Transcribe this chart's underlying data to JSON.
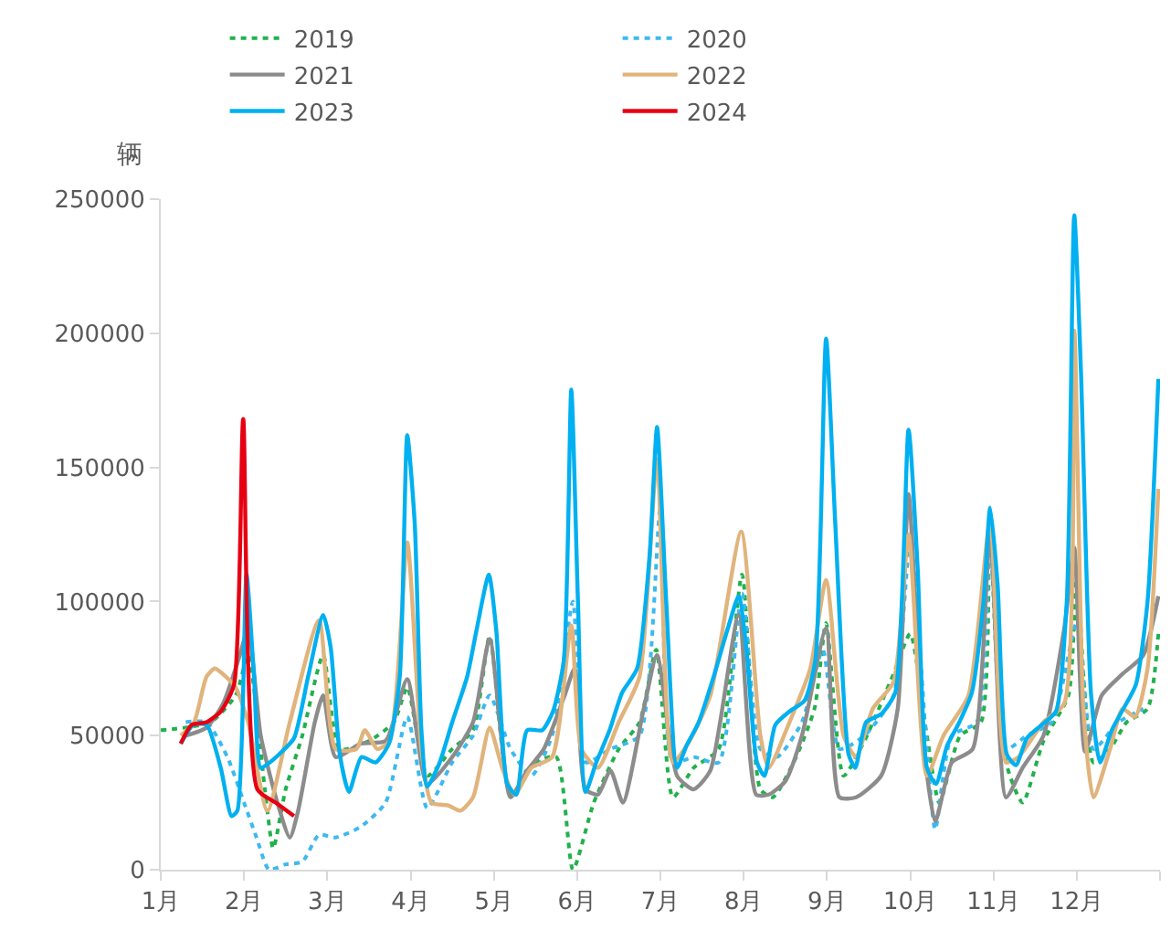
{
  "chart_data": {
    "type": "line",
    "ylabel": "辆",
    "xlim": [
      1,
      13
    ],
    "xticks": [
      {
        "value": 1,
        "label": "1月"
      },
      {
        "value": 2,
        "label": "2月"
      },
      {
        "value": 3,
        "label": "3月"
      },
      {
        "value": 4,
        "label": "4月"
      },
      {
        "value": 5,
        "label": "5月"
      },
      {
        "value": 6,
        "label": "6月"
      },
      {
        "value": 7,
        "label": "7月"
      },
      {
        "value": 8,
        "label": "8月"
      },
      {
        "value": 9,
        "label": "9月"
      },
      {
        "value": 10,
        "label": "10月"
      },
      {
        "value": 11,
        "label": "11月"
      },
      {
        "value": 12,
        "label": "12月"
      },
      {
        "value": 13,
        "label": null
      }
    ],
    "ylim": [
      0,
      250000
    ],
    "yticks": [
      0,
      50000,
      100000,
      150000,
      200000,
      250000
    ],
    "grid": false,
    "legend": "top",
    "marker": "none",
    "series": [
      {
        "name": "2019",
        "color": "#22b14c",
        "line_style": "dotted",
        "x": [
          1.0,
          1.3,
          1.6,
          1.9,
          2.05,
          2.25,
          2.35,
          2.5,
          2.7,
          2.95,
          3.15,
          3.5,
          3.8,
          3.96,
          4.2,
          4.5,
          4.75,
          4.95,
          5.2,
          5.5,
          5.75,
          5.95,
          6.2,
          6.5,
          6.75,
          6.95,
          7.15,
          7.4,
          7.7,
          7.98,
          8.2,
          8.35,
          8.6,
          8.85,
          8.99,
          9.2,
          9.45,
          9.8,
          10.0,
          10.2,
          10.35,
          10.6,
          10.85,
          10.96,
          11.15,
          11.35,
          11.6,
          11.9,
          12.0,
          12.2,
          12.4,
          12.6,
          12.85,
          12.98
        ],
        "values": [
          52000,
          53000,
          55000,
          65000,
          80000,
          30000,
          8000,
          30000,
          50000,
          80000,
          45000,
          48000,
          55000,
          68000,
          35000,
          45000,
          52000,
          87000,
          28000,
          40000,
          42000,
          0,
          25000,
          45000,
          55000,
          82000,
          27000,
          38000,
          45000,
          110000,
          30000,
          27000,
          40000,
          60000,
          92000,
          35000,
          48000,
          73000,
          88000,
          50000,
          25000,
          50000,
          55000,
          130000,
          40000,
          25000,
          48000,
          65000,
          110000,
          40000,
          45000,
          55000,
          60000,
          88000
        ]
      },
      {
        "name": "2020",
        "color": "#3cb9f0",
        "line_style": "dotted",
        "x": [
          1.3,
          1.55,
          1.8,
          2.0,
          2.15,
          2.3,
          2.5,
          2.7,
          2.9,
          3.1,
          3.4,
          3.7,
          3.96,
          4.2,
          4.5,
          4.75,
          4.95,
          5.2,
          5.45,
          5.7,
          5.95,
          6.1,
          6.4,
          6.75,
          7.0,
          7.15,
          7.4,
          7.7,
          7.98,
          8.2,
          8.4,
          8.7,
          8.95,
          9.15,
          9.45,
          9.8,
          10.0,
          10.2,
          10.3,
          10.5,
          10.8,
          10.96,
          11.15,
          11.4,
          11.7,
          12.0,
          12.2,
          12.5,
          12.8
        ],
        "values": [
          55000,
          55000,
          42000,
          25000,
          12000,
          0,
          2000,
          3000,
          13000,
          12000,
          16000,
          25000,
          57000,
          23000,
          40000,
          50000,
          65000,
          45000,
          35000,
          50000,
          100000,
          40000,
          45000,
          50000,
          135000,
          40000,
          42000,
          40000,
          103000,
          45000,
          42000,
          55000,
          82000,
          45000,
          50000,
          65000,
          122000,
          45000,
          15000,
          50000,
          55000,
          120000,
          45000,
          50000,
          55000,
          92000,
          45000,
          55000,
          60000
        ]
      },
      {
        "name": "2021",
        "color": "#8c8c8c",
        "line_style": "solid",
        "x": [
          1.3,
          1.55,
          1.75,
          1.95,
          2.05,
          2.2,
          2.4,
          2.55,
          2.65,
          2.85,
          2.95,
          3.1,
          3.4,
          3.7,
          3.96,
          4.2,
          4.5,
          4.75,
          4.95,
          5.2,
          5.4,
          5.6,
          5.85,
          5.97,
          6.1,
          6.25,
          6.4,
          6.55,
          6.8,
          6.96,
          7.2,
          7.4,
          7.6,
          7.94,
          8.15,
          8.3,
          8.5,
          8.7,
          8.99,
          9.15,
          9.35,
          9.65,
          9.85,
          9.98,
          10.15,
          10.3,
          10.5,
          10.75,
          10.96,
          11.15,
          11.35,
          11.6,
          11.85,
          11.97,
          12.1,
          12.3,
          12.55,
          12.8,
          12.98
        ],
        "values": [
          50000,
          53000,
          62000,
          80000,
          90000,
          50000,
          25000,
          12000,
          22000,
          55000,
          65000,
          42000,
          47000,
          48000,
          71000,
          32000,
          42000,
          55000,
          86000,
          27000,
          37000,
          45000,
          65000,
          75000,
          30000,
          28000,
          37000,
          25000,
          60000,
          80000,
          35000,
          30000,
          37000,
          95000,
          28000,
          28000,
          33000,
          50000,
          90000,
          27000,
          27000,
          35000,
          60000,
          140000,
          50000,
          18000,
          40000,
          45000,
          126000,
          27000,
          38000,
          50000,
          90000,
          120000,
          44000,
          65000,
          73000,
          80000,
          102000
        ]
      },
      {
        "name": "2022",
        "color": "#e0b47c",
        "line_style": "solid",
        "x": [
          1.24,
          1.4,
          1.55,
          1.65,
          1.78,
          1.9,
          2.05,
          2.28,
          2.55,
          2.9,
          3.1,
          3.35,
          3.45,
          3.6,
          3.75,
          3.96,
          4.13,
          4.25,
          4.45,
          4.6,
          4.75,
          4.95,
          5.1,
          5.25,
          5.45,
          5.7,
          5.93,
          6.05,
          6.25,
          6.5,
          6.75,
          6.96,
          7.15,
          7.35,
          7.6,
          7.97,
          8.2,
          8.3,
          8.55,
          8.8,
          8.99,
          9.2,
          9.35,
          9.55,
          9.8,
          9.98,
          10.2,
          10.4,
          10.7,
          10.96,
          11.15,
          11.3,
          11.6,
          11.85,
          11.97,
          12.08,
          12.2,
          12.4,
          12.55,
          12.7,
          12.85,
          12.98
        ],
        "values": [
          50000,
          55000,
          72000,
          75000,
          72000,
          68000,
          55000,
          22000,
          55000,
          93000,
          45000,
          45000,
          52000,
          45000,
          48000,
          122000,
          45000,
          25000,
          24000,
          22000,
          27000,
          53000,
          38000,
          28000,
          38000,
          42000,
          91000,
          45000,
          38000,
          55000,
          72000,
          153000,
          40000,
          48000,
          65000,
          126000,
          50000,
          38000,
          55000,
          75000,
          108000,
          50000,
          42000,
          60000,
          70000,
          125000,
          35000,
          50000,
          65000,
          130000,
          40000,
          42000,
          55000,
          62000,
          201000,
          60000,
          27000,
          45000,
          60000,
          57000,
          75000,
          142000
        ]
      },
      {
        "name": "2023",
        "color": "#00b0f0",
        "line_style": "solid",
        "x": [
          1.24,
          1.39,
          1.55,
          1.72,
          1.85,
          1.92,
          2.03,
          2.12,
          2.2,
          2.31,
          2.42,
          2.6,
          2.77,
          2.95,
          3.04,
          3.15,
          3.26,
          3.41,
          3.58,
          3.74,
          3.87,
          3.96,
          4.05,
          4.13,
          4.2,
          4.35,
          4.5,
          4.68,
          4.79,
          4.94,
          5.03,
          5.16,
          5.27,
          5.4,
          5.58,
          5.71,
          5.84,
          5.93,
          6.01,
          6.1,
          6.23,
          6.39,
          6.54,
          6.72,
          6.87,
          6.96,
          7.07,
          7.2,
          7.31,
          7.46,
          7.63,
          7.81,
          7.94,
          8.03,
          8.16,
          8.25,
          8.38,
          8.55,
          8.73,
          8.86,
          8.99,
          9.1,
          9.26,
          9.34,
          9.47,
          9.65,
          9.82,
          9.98,
          10.09,
          10.2,
          10.31,
          10.44,
          10.59,
          10.74,
          10.88,
          10.96,
          11.05,
          11.16,
          11.27,
          11.4,
          11.58,
          11.75,
          11.88,
          11.97,
          12.05,
          12.17,
          12.28,
          12.42,
          12.56,
          12.71,
          12.85,
          12.98
        ],
        "values": [
          47000,
          54000,
          54000,
          38000,
          20000,
          22000,
          110000,
          72000,
          38000,
          40000,
          43000,
          49000,
          72000,
          95000,
          83000,
          43000,
          29000,
          42000,
          40000,
          47000,
          72000,
          162000,
          129000,
          52000,
          31000,
          40000,
          55000,
          72000,
          89000,
          110000,
          89000,
          32000,
          28000,
          52000,
          52000,
          59000,
          78000,
          179000,
          100000,
          29000,
          40000,
          52000,
          66000,
          75000,
          117000,
          165000,
          100000,
          38000,
          46000,
          55000,
          71000,
          90000,
          102000,
          83000,
          40000,
          35000,
          54000,
          59000,
          63000,
          78000,
          198000,
          129000,
          43000,
          38000,
          55000,
          58000,
          66000,
          164000,
          112000,
          38000,
          32000,
          46000,
          55000,
          66000,
          100000,
          135000,
          106000,
          43000,
          39000,
          49000,
          54000,
          59000,
          100000,
          244000,
          186000,
          66000,
          40000,
          52000,
          60000,
          69000,
          100000,
          183000
        ]
      },
      {
        "name": "2024",
        "color": "#e60012",
        "line_style": "solid",
        "x": [
          1.24,
          1.37,
          1.55,
          1.72,
          1.88,
          1.99,
          2.16,
          2.38,
          2.6
        ],
        "values": [
          47000,
          54000,
          55000,
          59000,
          69000,
          168000,
          30000,
          25000,
          20000
        ]
      }
    ]
  }
}
